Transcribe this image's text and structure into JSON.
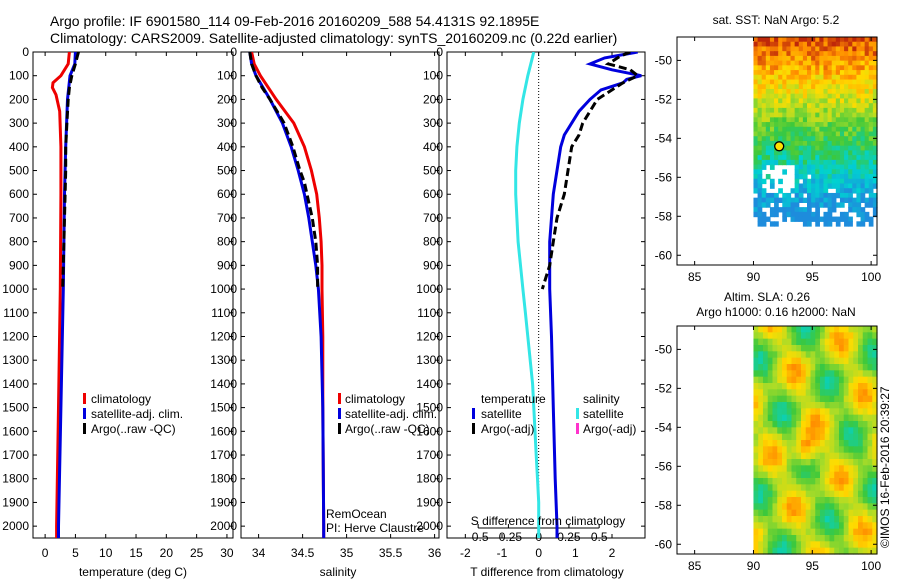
{
  "header": {
    "title_line1": "Argo profile: IF 6901580_114 09-Feb-2016 20160209_588 54.4131S 92.1895E",
    "title_line2": "Climatology: CARS2009. Satellite-adjusted climatology: synTS_20160209.nc (0.22d earlier)"
  },
  "colors": {
    "climatology": "#ee0000",
    "satellite": "#0000dd",
    "argo": "#000000",
    "salinity_sat": "#33e6e6",
    "salinity_argo": "#ff33cc"
  },
  "chart_data": [
    {
      "type": "line",
      "id": "temperature",
      "xlabel": "temperature (deg C)",
      "ylabel": "",
      "xlim": [
        -2,
        31
      ],
      "ylim": [
        2050,
        0
      ],
      "xticks": [
        0,
        5,
        10,
        15,
        20,
        25,
        30
      ],
      "yticks": [
        0,
        100,
        200,
        300,
        400,
        500,
        600,
        700,
        800,
        900,
        1000,
        1100,
        1200,
        1300,
        1400,
        1500,
        1600,
        1700,
        1800,
        1900,
        2000
      ],
      "legend": [
        "climatology",
        "satellite-adj. clim.",
        "Argo(..raw -QC)"
      ],
      "legend_position": "lower-right",
      "series": [
        {
          "name": "climatology",
          "depth": [
            0,
            50,
            100,
            130,
            150,
            180,
            250,
            400,
            600,
            1000,
            1500,
            2000,
            2050
          ],
          "values": [
            4.0,
            3.8,
            2.6,
            1.3,
            1.2,
            1.8,
            2.4,
            2.6,
            2.6,
            2.5,
            2.2,
            1.9,
            1.9
          ]
        },
        {
          "name": "satellite",
          "depth": [
            0,
            50,
            100,
            200,
            400,
            600,
            1000,
            1500,
            2000,
            2050
          ],
          "values": [
            5.0,
            4.9,
            4.1,
            3.7,
            3.4,
            3.2,
            3.0,
            2.6,
            2.2,
            2.2
          ]
        },
        {
          "name": "Argo",
          "depth": [
            0,
            20,
            50,
            100,
            150,
            200,
            300,
            400,
            500,
            600,
            700,
            800,
            900,
            1000
          ],
          "values": [
            5.5,
            5.3,
            5.0,
            4.4,
            4.0,
            3.8,
            3.6,
            3.4,
            3.4,
            3.3,
            3.2,
            3.1,
            3.0,
            2.9
          ]
        }
      ]
    },
    {
      "type": "line",
      "id": "salinity",
      "xlabel": "salinity",
      "xlim": [
        33.8,
        36.05
      ],
      "ylim": [
        2050,
        0
      ],
      "xticks": [
        34,
        34.5,
        35,
        35.5,
        36
      ],
      "legend": [
        "climatology",
        "satellite-adj. clim.",
        "Argo(..raw -QC)"
      ],
      "legend_position": "lower-right",
      "annotation": [
        "RemOcean",
        "PI: Herve Claustre"
      ],
      "series": [
        {
          "name": "climatology",
          "depth": [
            0,
            50,
            100,
            200,
            300,
            400,
            500,
            600,
            700,
            800,
            900,
            1000,
            1200,
            1500,
            2000,
            2050
          ],
          "values": [
            33.92,
            33.95,
            34.02,
            34.2,
            34.4,
            34.52,
            34.6,
            34.66,
            34.69,
            34.71,
            34.72,
            34.72,
            34.73,
            34.73,
            34.74,
            34.74
          ]
        },
        {
          "name": "satellite",
          "depth": [
            0,
            50,
            100,
            200,
            300,
            400,
            500,
            600,
            700,
            800,
            900,
            1000,
            1200,
            1500,
            2000,
            2050
          ],
          "values": [
            33.9,
            33.92,
            33.97,
            34.13,
            34.27,
            34.37,
            34.45,
            34.52,
            34.57,
            34.61,
            34.65,
            34.68,
            34.71,
            34.73,
            34.74,
            34.74
          ]
        },
        {
          "name": "Argo",
          "depth": [
            0,
            50,
            100,
            150,
            200,
            250,
            300,
            350,
            400,
            450,
            500,
            550,
            600,
            650,
            700,
            750,
            800,
            850,
            900,
            950,
            1000
          ],
          "values": [
            33.9,
            33.92,
            33.97,
            34.04,
            34.13,
            34.21,
            34.29,
            34.34,
            34.39,
            34.43,
            34.47,
            34.52,
            34.55,
            34.58,
            34.61,
            34.63,
            34.65,
            34.66,
            34.67,
            34.67,
            34.67
          ]
        }
      ]
    },
    {
      "type": "line",
      "id": "difference",
      "xlabel": "T difference from climatology",
      "xlabel_top": "S difference from climatology",
      "xlim": [
        -2.5,
        2.9
      ],
      "ylim": [
        2050,
        0
      ],
      "xticks": [
        -2,
        -1,
        0,
        1,
        2
      ],
      "xticks_s": [
        -0.5,
        -0.25,
        0,
        0.25,
        0.5
      ],
      "legend_headers": [
        "temperature",
        "salinity"
      ],
      "legend": [
        "satellite",
        "Argo(-adj)",
        "satellite",
        "Argo(-adj)"
      ],
      "legend_position": "lower-center",
      "series": [
        {
          "name": "temperature satellite",
          "depth": [
            0,
            25,
            50,
            75,
            100,
            115,
            130,
            160,
            200,
            250,
            300,
            350,
            400,
            500,
            600,
            700,
            800,
            900,
            1000,
            1200,
            1500,
            1800,
            2000,
            2050
          ],
          "values": [
            2.7,
            1.8,
            1.4,
            2.0,
            2.8,
            2.4,
            2.3,
            1.7,
            1.4,
            1.1,
            0.9,
            0.7,
            0.6,
            0.5,
            0.4,
            0.35,
            0.3,
            0.3,
            0.3,
            0.35,
            0.4,
            0.45,
            0.5,
            0.5
          ]
        },
        {
          "name": "temperature Argo",
          "depth": [
            0,
            20,
            50,
            75,
            100,
            130,
            160,
            200,
            250,
            300,
            350,
            400,
            500,
            600,
            700,
            800,
            900,
            1000
          ],
          "values": [
            2.5,
            2.2,
            1.9,
            2.5,
            2.7,
            2.3,
            2.0,
            1.6,
            1.4,
            1.2,
            1.1,
            0.9,
            0.8,
            0.7,
            0.5,
            0.4,
            0.3,
            0.1
          ]
        },
        {
          "name": "salinity satellite",
          "depth": [
            0,
            100,
            200,
            300,
            400,
            500,
            600,
            700,
            800,
            900,
            1000,
            1100,
            1200,
            1300,
            1400,
            1500,
            1600,
            1700,
            1800,
            1900,
            2000,
            2050
          ],
          "values": [
            -0.04,
            -0.09,
            -0.13,
            -0.16,
            -0.18,
            -0.19,
            -0.19,
            -0.18,
            -0.17,
            -0.15,
            -0.13,
            -0.11,
            -0.09,
            -0.07,
            -0.05,
            -0.04,
            -0.03,
            -0.02,
            -0.01,
            0.0,
            0.0,
            0.0
          ]
        }
      ]
    },
    {
      "type": "heatmap",
      "id": "sst_map",
      "title": "sat. SST: NaN Argo: 5.2",
      "xlim": [
        83.5,
        100.5
      ],
      "ylim": [
        -60.5,
        -48.8
      ],
      "xticks": [
        85,
        90,
        95,
        100
      ],
      "yticks": [
        -50,
        -52,
        -54,
        -56,
        -58,
        -60
      ],
      "data_extent_lon": [
        90,
        100.5
      ],
      "data_extent_lat": [
        -58.5,
        -48.8
      ],
      "argo_marker": {
        "lon": 92.19,
        "lat": -54.41
      }
    },
    {
      "type": "heatmap",
      "id": "sla_map",
      "title_line1": "Altim. SLA: 0.26",
      "title_line2": "Argo h1000: 0.16 h2000: NaN",
      "xlim": [
        83.5,
        100.5
      ],
      "ylim": [
        -60.5,
        -48.8
      ],
      "xticks": [
        85,
        90,
        95,
        100
      ],
      "yticks": [
        -50,
        -52,
        -54,
        -56,
        -58,
        -60
      ],
      "data_extent_lon": [
        90,
        100.5
      ],
      "data_extent_lat": [
        -60.5,
        -48.8
      ]
    }
  ],
  "credit": "©IMOS 16-Feb-2016 20:39:27"
}
